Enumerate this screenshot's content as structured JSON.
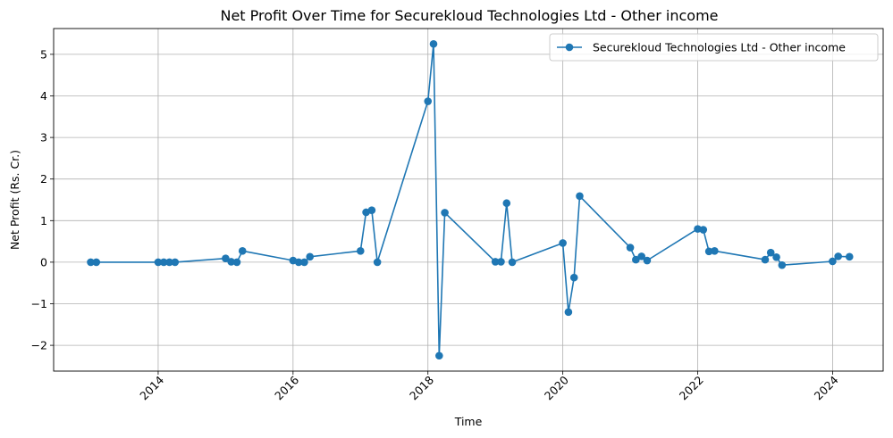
{
  "chart_data": {
    "type": "line",
    "title": "Net Profit Over Time for Securekloud Technologies Ltd - Other income",
    "xlabel": "Time",
    "ylabel": "Net Profit (Rs. Cr.)",
    "xlim": [
      2012.45,
      2024.75
    ],
    "ylim": [
      -2.62,
      5.62
    ],
    "xticks": [
      2014,
      2016,
      2018,
      2020,
      2022,
      2024
    ],
    "xtick_labels": [
      "2014",
      "2016",
      "2018",
      "2020",
      "2022",
      "2024"
    ],
    "yticks": [
      -2,
      -1,
      0,
      1,
      2,
      3,
      4,
      5
    ],
    "ytick_labels": [
      "−2",
      "−1",
      "0",
      "1",
      "2",
      "3",
      "4",
      "5"
    ],
    "grid": true,
    "legend_position": "top-right",
    "series": [
      {
        "name": "Securekloud Technologies Ltd - Other income",
        "color": "#1f77b4",
        "marker": "circle",
        "x": [
          2013.0,
          2013.083,
          2014.0,
          2014.083,
          2014.167,
          2014.25,
          2015.0,
          2015.083,
          2015.167,
          2015.25,
          2016.0,
          2016.083,
          2016.167,
          2016.25,
          2017.0,
          2017.083,
          2017.167,
          2017.25,
          2018.0,
          2018.083,
          2018.167,
          2018.25,
          2019.0,
          2019.083,
          2019.167,
          2019.25,
          2020.0,
          2020.083,
          2020.167,
          2020.25,
          2021.0,
          2021.083,
          2021.167,
          2021.25,
          2022.0,
          2022.083,
          2022.167,
          2022.25,
          2023.0,
          2023.083,
          2023.167,
          2023.25,
          2024.0,
          2024.083,
          2024.25
        ],
        "y": [
          0.0,
          0.0,
          0.0,
          0.0,
          0.0,
          0.0,
          0.09,
          0.01,
          0.0,
          0.27,
          0.04,
          0.0,
          0.0,
          0.13,
          0.27,
          1.2,
          1.25,
          0.0,
          3.87,
          5.25,
          -2.25,
          1.19,
          0.01,
          0.01,
          1.42,
          0.0,
          0.46,
          -1.2,
          -0.37,
          1.59,
          0.35,
          0.06,
          0.14,
          0.04,
          0.8,
          0.78,
          0.26,
          0.27,
          0.06,
          0.23,
          0.12,
          -0.07,
          0.02,
          0.14,
          0.13
        ]
      }
    ]
  }
}
